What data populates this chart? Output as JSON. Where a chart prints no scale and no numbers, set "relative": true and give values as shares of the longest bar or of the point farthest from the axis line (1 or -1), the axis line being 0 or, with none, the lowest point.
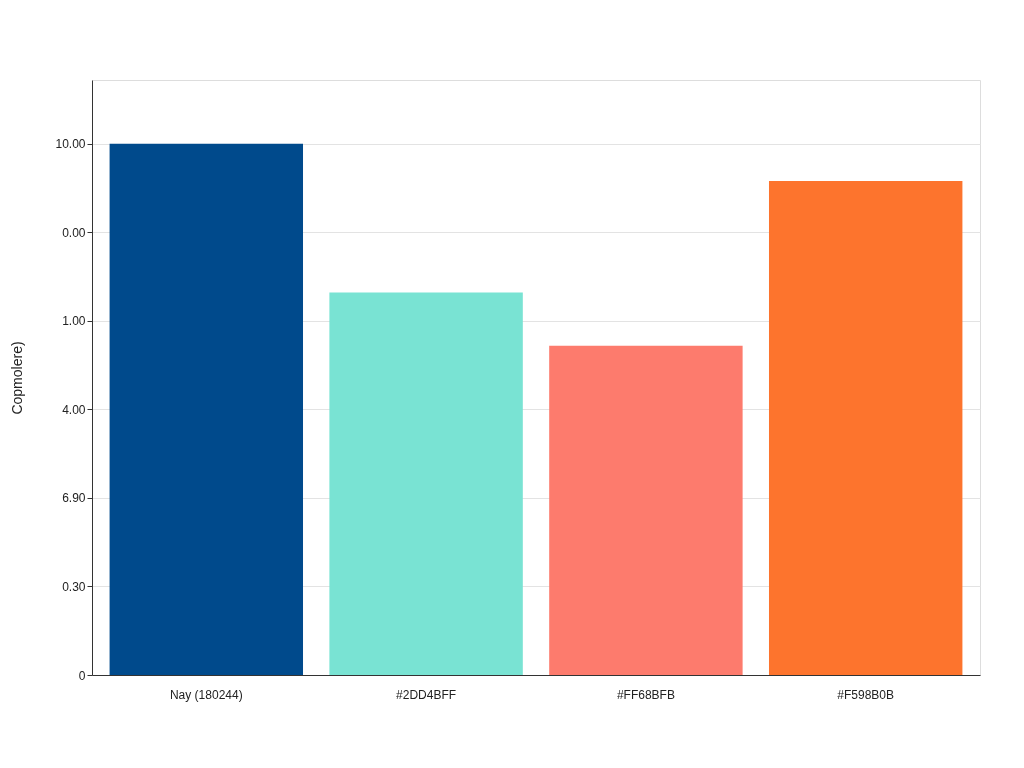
{
  "chart_data": {
    "type": "bar",
    "ylabel": "Copmolere)",
    "relative": true,
    "categories": [
      "Nay (180244)",
      "#2DD4BFF",
      "#FF68BFB",
      "#F598B0B"
    ],
    "values": [
      1,
      0.72,
      0.62,
      0.93
    ],
    "colors": [
      "#004a8c",
      "#79e3d3",
      "#fd7b6d",
      "#fd742d"
    ],
    "annotations": [
      "0",
      "0.30",
      "6.90",
      "4.00",
      "1.00",
      "0.00",
      "10.00"
    ],
    "grid": "y",
    "legend": false
  }
}
